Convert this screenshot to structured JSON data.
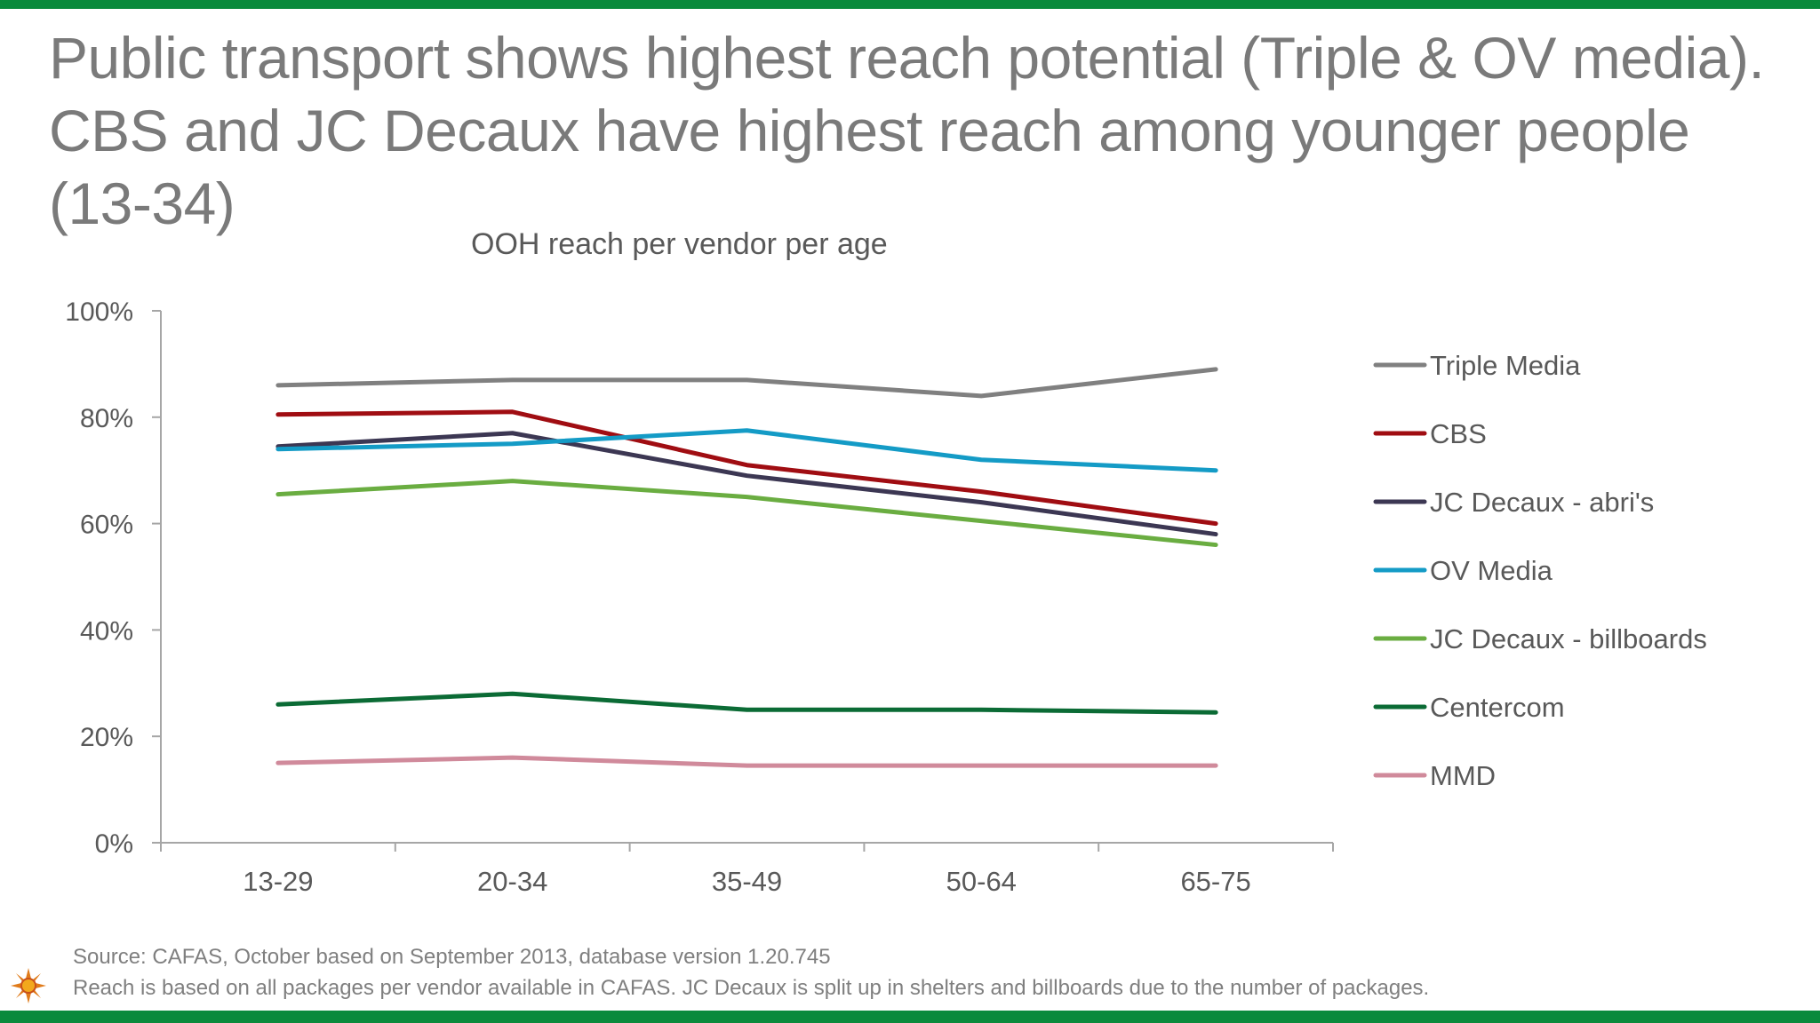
{
  "slide": {
    "title": "Public transport shows highest reach potential (Triple & OV media). CBS and JC Decaux have highest reach among younger people (13-34)",
    "footnote_source": "Source: CAFAS, October based on September 2013, database version 1.20.745",
    "footnote_note": "Reach is based on all packages per vendor available in CAFAS. JC Decaux is split up in shelters and billboards due to the number of packages.",
    "brand_color": "#0a8a3c",
    "logo_icon": "sun-icon"
  },
  "chart_data": {
    "type": "line",
    "title": "OOH reach per vendor per age",
    "categories": [
      "13-29",
      "20-34",
      "35-49",
      "50-64",
      "65-75"
    ],
    "y_tick_labels": [
      "0%",
      "20%",
      "40%",
      "60%",
      "80%",
      "100%"
    ],
    "ylim": [
      0,
      100
    ],
    "grid": false,
    "legend_position": "right",
    "series": [
      {
        "name": "Triple Media",
        "color": "#808080",
        "values": [
          86,
          87,
          87,
          84,
          89
        ]
      },
      {
        "name": "CBS",
        "color": "#a00d12",
        "values": [
          80.5,
          81,
          71,
          66,
          60
        ]
      },
      {
        "name": "JC Decaux - abri's",
        "color": "#3c3753",
        "values": [
          74.5,
          77,
          69,
          64,
          58
        ]
      },
      {
        "name": "OV Media",
        "color": "#149bc6",
        "values": [
          74,
          75,
          77.5,
          72,
          70
        ]
      },
      {
        "name": "JC Decaux - billboards",
        "color": "#6aad41",
        "values": [
          65.5,
          68,
          65,
          60.5,
          56
        ]
      },
      {
        "name": "Centercom",
        "color": "#0b6b35",
        "values": [
          26,
          28,
          25,
          25,
          24.5
        ]
      },
      {
        "name": "MMD",
        "color": "#d08a9b",
        "values": [
          15,
          16,
          14.5,
          14.5,
          14.5
        ]
      }
    ]
  }
}
